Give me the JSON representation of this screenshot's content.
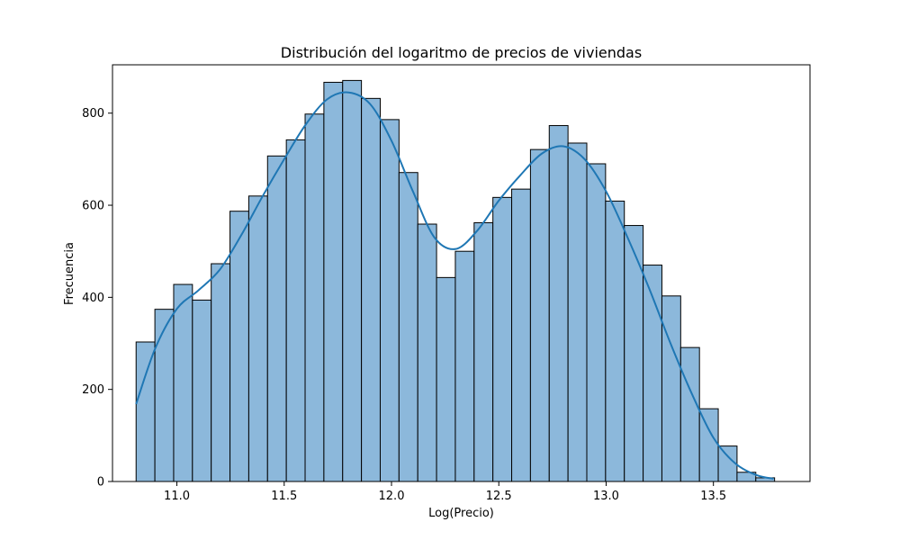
{
  "chart_data": {
    "type": "bar",
    "title": "Distribución del logaritmo de precios de viviendas",
    "xlabel": "Log(Precio)",
    "ylabel": "Frecuencia",
    "xlim": [
      10.7,
      13.95
    ],
    "ylim": [
      0,
      905
    ],
    "x_ticks": [
      11.0,
      11.5,
      12.0,
      12.5,
      13.0,
      13.5
    ],
    "x_tick_labels": [
      "11.0",
      "11.5",
      "12.0",
      "12.5",
      "13.0",
      "13.5"
    ],
    "y_ticks": [
      0,
      200,
      400,
      600,
      800
    ],
    "y_tick_labels": [
      "0",
      "200",
      "400",
      "600",
      "800"
    ],
    "grid": false,
    "bins": {
      "start": 10.81,
      "width": 0.0875,
      "counts": [
        303,
        374,
        428,
        394,
        473,
        587,
        620,
        707,
        742,
        798,
        867,
        871,
        832,
        786,
        671,
        559,
        443,
        500,
        562,
        617,
        635,
        721,
        773,
        735,
        690,
        609,
        556,
        470,
        403,
        291,
        158,
        77,
        20,
        8
      ]
    },
    "kde_line": {
      "x": [
        10.81,
        10.9,
        11.0,
        11.1,
        11.2,
        11.3,
        11.4,
        11.5,
        11.6,
        11.7,
        11.8,
        11.9,
        12.0,
        12.1,
        12.2,
        12.3,
        12.4,
        12.5,
        12.6,
        12.7,
        12.8,
        12.9,
        13.0,
        13.1,
        13.2,
        13.3,
        13.4,
        13.5,
        13.6,
        13.7,
        13.78
      ],
      "y": [
        168,
        290,
        375,
        415,
        460,
        535,
        620,
        700,
        775,
        830,
        845,
        820,
        740,
        630,
        530,
        505,
        545,
        610,
        665,
        712,
        728,
        700,
        630,
        530,
        420,
        300,
        190,
        95,
        40,
        14,
        6
      ]
    },
    "colors": {
      "bar_fill": "#8cb8db",
      "bar_edge": "#000000",
      "line": "#1f77b4"
    }
  }
}
